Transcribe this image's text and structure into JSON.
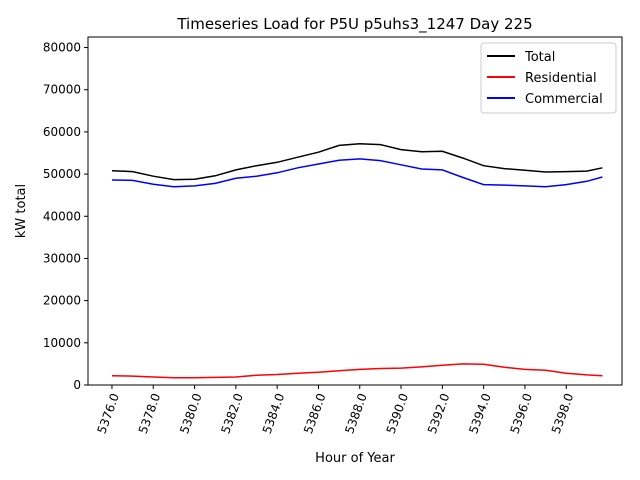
{
  "chart_data": {
    "type": "line",
    "title": "Timeseries Load for P5U p5uhs3_1247  Day 225",
    "xlabel": "Hour of Year",
    "ylabel": "kW total",
    "xlim": [
      5374.84,
      5400.7
    ],
    "ylim": [
      0,
      82500
    ],
    "xticks": [
      5376,
      5378,
      5380,
      5382,
      5384,
      5386,
      5388,
      5390,
      5392,
      5394,
      5396,
      5398
    ],
    "xtick_labels": [
      "5376.0",
      "5378.0",
      "5380.0",
      "5382.0",
      "5384.0",
      "5386.0",
      "5388.0",
      "5390.0",
      "5392.0",
      "5394.0",
      "5396.0",
      "5398.0"
    ],
    "yticks": [
      0,
      10000,
      20000,
      30000,
      40000,
      50000,
      60000,
      70000,
      80000
    ],
    "ytick_labels": [
      "0",
      "10000",
      "20000",
      "30000",
      "40000",
      "50000",
      "60000",
      "70000",
      "80000"
    ],
    "grid": false,
    "legend_position": "top-right",
    "x": [
      5376,
      5377,
      5378,
      5379,
      5380,
      5381,
      5382,
      5383,
      5384,
      5385,
      5386,
      5387,
      5388,
      5389,
      5390,
      5391,
      5392,
      5393,
      5394,
      5395,
      5396,
      5397,
      5398,
      5399,
      5399.75
    ],
    "series": [
      {
        "name": "Total",
        "color": "#000000",
        "values": [
          50800,
          50600,
          49500,
          48700,
          48800,
          49600,
          51000,
          52000,
          52800,
          54000,
          55200,
          56800,
          57200,
          57000,
          55800,
          55300,
          55400,
          53800,
          52000,
          51300,
          50900,
          50500,
          50600,
          50700,
          51500
        ]
      },
      {
        "name": "Residential",
        "color": "#ff0000",
        "values": [
          2200,
          2100,
          1900,
          1700,
          1700,
          1800,
          1900,
          2300,
          2500,
          2800,
          3000,
          3400,
          3700,
          3900,
          4000,
          4300,
          4700,
          5000,
          4900,
          4200,
          3700,
          3500,
          2800,
          2400,
          2200
        ]
      },
      {
        "name": "Commercial",
        "color": "#0000ff",
        "values": [
          48600,
          48500,
          47600,
          47000,
          47200,
          47800,
          49000,
          49500,
          50300,
          51500,
          52400,
          53300,
          53600,
          53200,
          52200,
          51200,
          51000,
          49200,
          47500,
          47400,
          47200,
          47000,
          47500,
          48300,
          49300
        ]
      }
    ]
  }
}
